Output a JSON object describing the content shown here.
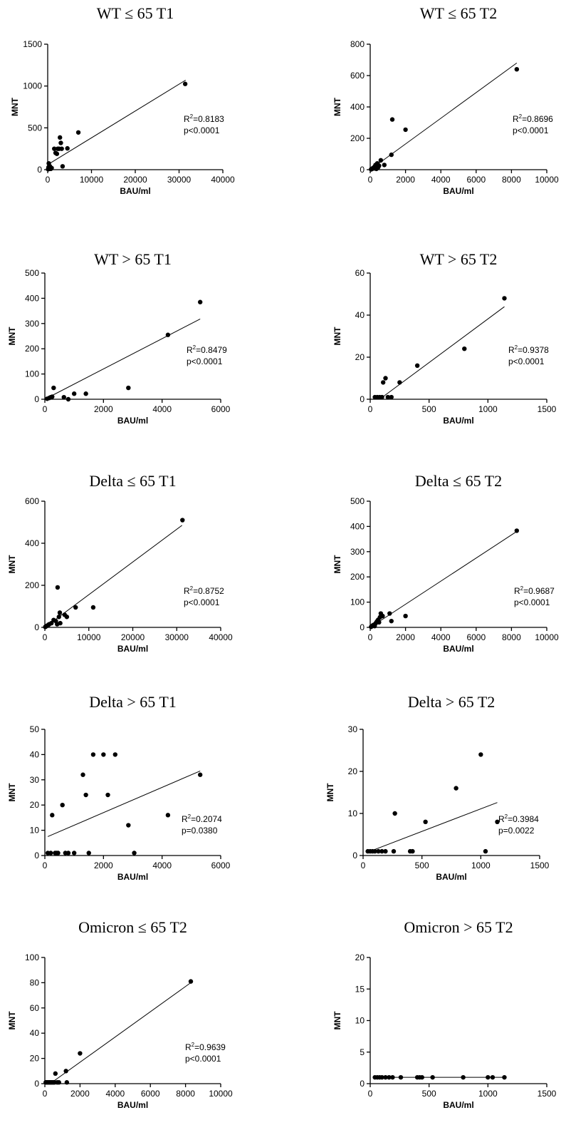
{
  "chart_data": [
    {
      "type": "scatter",
      "title": "WT ≤ 65 T1",
      "xlabel": "BAU/ml",
      "ylabel": "MNT",
      "xlim": [
        0,
        40000
      ],
      "ylim": [
        0,
        1500
      ],
      "xticks": [
        "0",
        "10000",
        "20000",
        "30000",
        "40000"
      ],
      "yticks": [
        "0",
        "500",
        "1000",
        "1500"
      ],
      "r2": "=0.8183",
      "pvalue": "p<0.0001",
      "fit": [
        [
          0,
          60
        ],
        [
          31500,
          1070
        ]
      ],
      "points": [
        [
          100,
          5
        ],
        [
          150,
          15
        ],
        [
          200,
          30
        ],
        [
          250,
          75
        ],
        [
          300,
          10
        ],
        [
          400,
          20
        ],
        [
          500,
          40
        ],
        [
          700,
          10
        ],
        [
          900,
          20
        ],
        [
          1500,
          250
        ],
        [
          1800,
          200
        ],
        [
          2100,
          190
        ],
        [
          2300,
          250
        ],
        [
          2600,
          250
        ],
        [
          2800,
          385
        ],
        [
          3000,
          320
        ],
        [
          3200,
          250
        ],
        [
          3400,
          40
        ],
        [
          4500,
          255
        ],
        [
          7000,
          445
        ],
        [
          31400,
          1025
        ]
      ]
    },
    {
      "type": "scatter",
      "title": "WT ≤ 65 T2",
      "xlabel": "BAU/ml",
      "ylabel": "MNT",
      "xlim": [
        0,
        10000
      ],
      "ylim": [
        0,
        800
      ],
      "xticks": [
        "0",
        "2000",
        "4000",
        "6000",
        "8000",
        "10000"
      ],
      "yticks": [
        "0",
        "200",
        "400",
        "600",
        "800"
      ],
      "r2": "=0.8696",
      "pvalue": "p<0.0001",
      "fit": [
        [
          0,
          0
        ],
        [
          8300,
          680
        ]
      ],
      "points": [
        [
          50,
          2
        ],
        [
          100,
          5
        ],
        [
          150,
          10
        ],
        [
          200,
          8
        ],
        [
          250,
          20
        ],
        [
          300,
          30
        ],
        [
          350,
          5
        ],
        [
          400,
          40
        ],
        [
          450,
          15
        ],
        [
          500,
          25
        ],
        [
          600,
          60
        ],
        [
          800,
          30
        ],
        [
          1200,
          95
        ],
        [
          1250,
          320
        ],
        [
          2000,
          255
        ],
        [
          8300,
          640
        ]
      ]
    },
    {
      "type": "scatter",
      "title": "WT > 65 T1",
      "xlabel": "BAU/ml",
      "ylabel": "MNT",
      "xlim": [
        0,
        6000
      ],
      "ylim": [
        0,
        500
      ],
      "xticks": [
        "0",
        "2000",
        "4000",
        "6000"
      ],
      "yticks": [
        "0",
        "100",
        "200",
        "300",
        "400",
        "500"
      ],
      "r2": "=0.8479",
      "pvalue": "p<0.0001",
      "fit": [
        [
          0,
          0
        ],
        [
          5300,
          318
        ]
      ],
      "points": [
        [
          80,
          2
        ],
        [
          150,
          5
        ],
        [
          200,
          8
        ],
        [
          250,
          10
        ],
        [
          300,
          45
        ],
        [
          650,
          8
        ],
        [
          800,
          0
        ],
        [
          1000,
          22
        ],
        [
          1400,
          22
        ],
        [
          2850,
          45
        ],
        [
          4200,
          255
        ],
        [
          5300,
          385
        ]
      ]
    },
    {
      "type": "scatter",
      "title": "WT > 65 T2",
      "xlabel": "BAU/ml",
      "ylabel": "MNT",
      "xlim": [
        0,
        1500
      ],
      "ylim": [
        0,
        60
      ],
      "xticks": [
        "0",
        "500",
        "1000",
        "1500"
      ],
      "yticks": [
        "0",
        "20",
        "40",
        "60"
      ],
      "r2": "=0.9378",
      "pvalue": "p<0.0001",
      "fit": [
        [
          80,
          0
        ],
        [
          1140,
          44
        ]
      ],
      "points": [
        [
          40,
          1
        ],
        [
          60,
          1
        ],
        [
          80,
          1
        ],
        [
          100,
          1
        ],
        [
          110,
          8
        ],
        [
          130,
          10
        ],
        [
          150,
          1
        ],
        [
          180,
          1
        ],
        [
          250,
          8
        ],
        [
          400,
          16
        ],
        [
          800,
          24
        ],
        [
          1140,
          48
        ]
      ]
    },
    {
      "type": "scatter",
      "title": "Delta ≤ 65 T1",
      "xlabel": "BAU/ml",
      "ylabel": "MNT",
      "xlim": [
        0,
        40000
      ],
      "ylim": [
        0,
        600
      ],
      "xticks": [
        "0",
        "10000",
        "20000",
        "30000",
        "40000"
      ],
      "yticks": [
        "0",
        "200",
        "400",
        "600"
      ],
      "r2": "=0.8752",
      "pvalue": "p<0.0001",
      "fit": [
        [
          0,
          0
        ],
        [
          31200,
          485
        ]
      ],
      "points": [
        [
          100,
          2
        ],
        [
          300,
          5
        ],
        [
          500,
          8
        ],
        [
          800,
          12
        ],
        [
          1000,
          15
        ],
        [
          1500,
          20
        ],
        [
          2000,
          35
        ],
        [
          2500,
          30
        ],
        [
          2800,
          15
        ],
        [
          2900,
          190
        ],
        [
          3200,
          50
        ],
        [
          3400,
          70
        ],
        [
          3500,
          20
        ],
        [
          4500,
          60
        ],
        [
          5000,
          50
        ],
        [
          7000,
          95
        ],
        [
          11000,
          95
        ],
        [
          31300,
          510
        ]
      ]
    },
    {
      "type": "scatter",
      "title": "Delta ≤ 65 T2",
      "xlabel": "BAU/ml",
      "ylabel": "MNT",
      "xlim": [
        0,
        10000
      ],
      "ylim": [
        0,
        500
      ],
      "xticks": [
        "0",
        "2000",
        "4000",
        "6000",
        "8000",
        "10000"
      ],
      "yticks": [
        "0",
        "100",
        "200",
        "300",
        "400",
        "500"
      ],
      "r2": "=0.9687",
      "pvalue": "p<0.0001",
      "fit": [
        [
          0,
          0
        ],
        [
          8300,
          380
        ]
      ],
      "points": [
        [
          50,
          2
        ],
        [
          100,
          5
        ],
        [
          150,
          8
        ],
        [
          200,
          10
        ],
        [
          250,
          5
        ],
        [
          300,
          15
        ],
        [
          350,
          20
        ],
        [
          400,
          25
        ],
        [
          450,
          30
        ],
        [
          500,
          20
        ],
        [
          550,
          40
        ],
        [
          600,
          55
        ],
        [
          700,
          45
        ],
        [
          1100,
          55
        ],
        [
          1200,
          25
        ],
        [
          2000,
          45
        ],
        [
          8300,
          383
        ]
      ]
    },
    {
      "type": "scatter",
      "title": "Delta > 65 T1",
      "xlabel": "BAU/ml",
      "ylabel": "MNT",
      "xlim": [
        0,
        6000
      ],
      "ylim": [
        0,
        50
      ],
      "xticks": [
        "0",
        "2000",
        "4000",
        "6000"
      ],
      "yticks": [
        "0",
        "10",
        "20",
        "30",
        "40",
        "50"
      ],
      "r2": "=0.2074",
      "pvalue": "p=0.0380",
      "fit": [
        [
          100,
          7.5
        ],
        [
          5300,
          33.5
        ]
      ],
      "points": [
        [
          100,
          1
        ],
        [
          200,
          1
        ],
        [
          250,
          16
        ],
        [
          350,
          1
        ],
        [
          400,
          1
        ],
        [
          450,
          1
        ],
        [
          600,
          20
        ],
        [
          700,
          1
        ],
        [
          800,
          1
        ],
        [
          1000,
          1
        ],
        [
          1300,
          32
        ],
        [
          1400,
          24
        ],
        [
          1500,
          1
        ],
        [
          1650,
          40
        ],
        [
          2000,
          40
        ],
        [
          2150,
          24
        ],
        [
          2400,
          40
        ],
        [
          2850,
          12
        ],
        [
          3050,
          1
        ],
        [
          4200,
          16
        ],
        [
          5300,
          32
        ]
      ]
    },
    {
      "type": "scatter",
      "title": "Delta > 65 T2",
      "xlabel": "BAU/ml",
      "ylabel": "MNT",
      "xlim": [
        0,
        1500
      ],
      "ylim": [
        0,
        30
      ],
      "xticks": [
        "0",
        "500",
        "1000",
        "1500"
      ],
      "yticks": [
        "0",
        "10",
        "20",
        "30"
      ],
      "r2": "=0.3984",
      "pvalue": "p=0.0022",
      "fit": [
        [
          40,
          0.8
        ],
        [
          1140,
          12.6
        ]
      ],
      "points": [
        [
          40,
          1
        ],
        [
          60,
          1
        ],
        [
          80,
          1
        ],
        [
          100,
          1
        ],
        [
          130,
          1
        ],
        [
          160,
          1
        ],
        [
          190,
          1
        ],
        [
          260,
          1
        ],
        [
          270,
          10
        ],
        [
          400,
          1
        ],
        [
          420,
          1
        ],
        [
          530,
          8
        ],
        [
          790,
          16
        ],
        [
          1000,
          24
        ],
        [
          1040,
          1
        ],
        [
          1140,
          8
        ]
      ]
    },
    {
      "type": "scatter",
      "title": "Omicron ≤ 65 T2",
      "xlabel": "BAU/ml",
      "ylabel": "MNT",
      "xlim": [
        0,
        10000
      ],
      "ylim": [
        0,
        100
      ],
      "xticks": [
        "0",
        "2000",
        "4000",
        "6000",
        "8000",
        "10000"
      ],
      "yticks": [
        "0",
        "20",
        "40",
        "60",
        "80",
        "100"
      ],
      "r2": "=0.9639",
      "pvalue": "p<0.0001",
      "fit": [
        [
          300,
          0
        ],
        [
          8300,
          80
        ]
      ],
      "points": [
        [
          50,
          1
        ],
        [
          100,
          1
        ],
        [
          150,
          1
        ],
        [
          200,
          1
        ],
        [
          250,
          1
        ],
        [
          300,
          1
        ],
        [
          350,
          1
        ],
        [
          400,
          1
        ],
        [
          450,
          1
        ],
        [
          500,
          1
        ],
        [
          550,
          1
        ],
        [
          600,
          8
        ],
        [
          700,
          1
        ],
        [
          800,
          1
        ],
        [
          1200,
          10
        ],
        [
          1250,
          1
        ],
        [
          2000,
          24
        ],
        [
          8300,
          81
        ]
      ]
    },
    {
      "type": "scatter",
      "title": "Omicron > 65 T2",
      "xlabel": "BAU/ml",
      "ylabel": "MNT",
      "xlim": [
        0,
        1500
      ],
      "ylim": [
        0,
        20
      ],
      "xticks": [
        "0",
        "500",
        "1000",
        "1500"
      ],
      "yticks": [
        "0",
        "5",
        "10",
        "15",
        "20"
      ],
      "r2": "",
      "pvalue": "",
      "fit": [
        [
          40,
          1
        ],
        [
          1140,
          1
        ]
      ],
      "points": [
        [
          40,
          1
        ],
        [
          60,
          1
        ],
        [
          80,
          1
        ],
        [
          100,
          1
        ],
        [
          130,
          1
        ],
        [
          160,
          1
        ],
        [
          190,
          1
        ],
        [
          260,
          1
        ],
        [
          400,
          1
        ],
        [
          420,
          1
        ],
        [
          440,
          1
        ],
        [
          530,
          1
        ],
        [
          790,
          1
        ],
        [
          1000,
          1
        ],
        [
          1040,
          1
        ],
        [
          1140,
          1
        ]
      ]
    }
  ]
}
